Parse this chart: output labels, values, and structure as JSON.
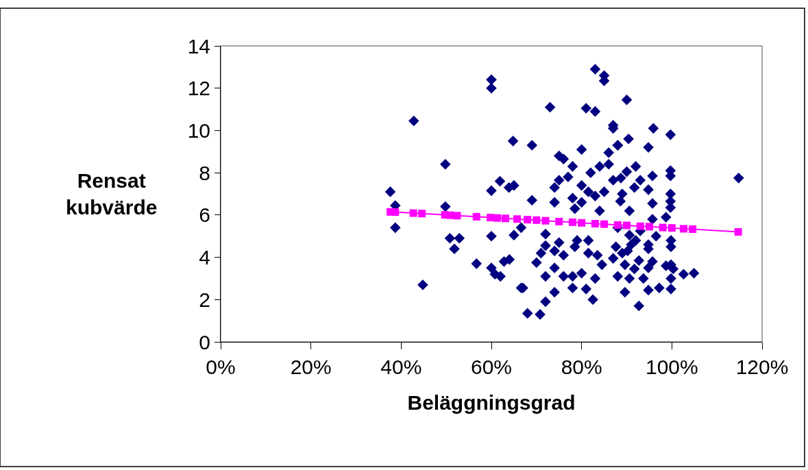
{
  "chart_data": {
    "type": "scatter",
    "xlabel": "Beläggningsgrad",
    "ylabel": "Rensat kubvärde",
    "xlim": [
      0,
      120
    ],
    "xticks": [
      {
        "value": 0,
        "label": "0%"
      },
      {
        "value": 20,
        "label": "20%"
      },
      {
        "value": 40,
        "label": "40%"
      },
      {
        "value": 60,
        "label": "60%"
      },
      {
        "value": 80,
        "label": "80%"
      },
      {
        "value": 100,
        "label": "100%"
      },
      {
        "value": 120,
        "label": "120%"
      }
    ],
    "ylim": [
      0,
      14
    ],
    "yticks": [
      0,
      2,
      4,
      6,
      8,
      10,
      12,
      14
    ],
    "grid": false,
    "series": [
      {
        "marker": "diamond",
        "color": "#000080",
        "x": [
          60,
          60,
          42.8,
          64.8,
          49.8,
          37.6,
          61.9,
          63.9,
          65,
          60,
          38.7,
          49.8,
          38.7,
          66.6,
          60,
          65,
          50.8,
          52.9,
          51.8,
          56.7,
          60,
          60.8,
          62,
          62.8,
          64,
          44.8,
          66.6,
          83,
          85,
          85,
          73,
          81,
          83,
          87,
          87,
          69,
          80,
          86,
          88,
          75,
          76,
          78,
          86,
          84,
          82,
          77,
          75,
          74,
          80,
          81.5,
          83,
          85,
          87,
          88.7,
          69,
          74,
          78,
          80,
          78.5,
          84,
          72,
          75,
          72,
          71,
          70,
          74,
          76,
          79,
          78.5,
          81.5,
          81.5,
          83.5,
          84.5,
          87.6,
          87,
          74,
          72,
          76,
          78,
          80,
          83,
          67,
          74,
          78,
          81,
          72,
          82.5,
          68,
          70.8,
          90,
          95.9,
          99.7,
          90.4,
          94.8,
          88,
          92,
          90,
          95.7,
          99.7,
          99.7,
          114.8,
          93,
          94.8,
          89,
          91.7,
          95.7,
          99.7,
          99.7,
          99.7,
          90.6,
          88.6,
          95.7,
          98.7,
          99.8,
          99.8,
          94.8,
          96.5,
          92,
          90.2,
          92.7,
          89.6,
          95.7,
          94.8,
          99.8,
          100.3,
          98.7,
          102.6,
          104.9,
          93.7,
          99.8,
          89.6,
          94.8,
          97.2,
          99.8,
          92.7,
          88,
          90.6,
          91.7,
          88,
          90.6,
          93,
          94.8,
          91,
          89
        ],
        "values": [
          12.4,
          12.0,
          10.45,
          9.5,
          8.4,
          7.1,
          7.6,
          7.3,
          7.4,
          7.15,
          6.45,
          6.4,
          5.4,
          5.4,
          5.0,
          5.05,
          4.9,
          4.9,
          4.4,
          3.7,
          3.5,
          3.2,
          3.1,
          3.8,
          3.9,
          2.7,
          2.55,
          12.9,
          12.6,
          12.35,
          11.1,
          11.05,
          10.9,
          10.25,
          10.1,
          9.3,
          9.1,
          8.95,
          9.3,
          8.8,
          8.65,
          8.3,
          8.4,
          8.3,
          8.0,
          7.8,
          7.65,
          7.3,
          7.4,
          7.1,
          6.9,
          7.1,
          7.65,
          7.75,
          6.7,
          6.6,
          6.8,
          6.6,
          6.3,
          6.2,
          5.1,
          4.7,
          4.55,
          4.2,
          3.75,
          4.3,
          4.1,
          4.8,
          4.5,
          4.8,
          4.2,
          4.1,
          3.65,
          4.5,
          3.95,
          3.5,
          3.1,
          3.1,
          3.1,
          3.25,
          3.0,
          2.55,
          2.35,
          2.55,
          2.5,
          1.9,
          2.0,
          1.35,
          1.3,
          11.45,
          10.1,
          9.8,
          9.6,
          9.2,
          9.3,
          8.3,
          8.05,
          7.85,
          8.1,
          7.85,
          7.75,
          7.65,
          7.2,
          7.0,
          7.3,
          6.55,
          7.0,
          6.65,
          6.35,
          6.2,
          6.65,
          5.8,
          5.9,
          4.8,
          4.5,
          4.4,
          5.0,
          4.8,
          4.3,
          3.85,
          3.65,
          3.8,
          3.5,
          3.65,
          3.45,
          3.6,
          3.2,
          3.25,
          3.0,
          3.0,
          2.35,
          2.45,
          2.55,
          2.5,
          1.7,
          3.1,
          3.0,
          3.45,
          5.4,
          5.05,
          5.25,
          4.6,
          4.6,
          4.2
        ]
      },
      {
        "type": "line",
        "marker": "square",
        "line_style": "solid",
        "color": "#ff00ff",
        "x": [
          37.6,
          38.7,
          42.7,
          44.6,
          49.7,
          50.9,
          52.4,
          56.7,
          59.8,
          61.3,
          63.1,
          65.7,
          68,
          70,
          72,
          75,
          78,
          80,
          83,
          85,
          88,
          90,
          93,
          95,
          98,
          100,
          102.6,
          104.6,
          114.7
        ],
        "values": [
          6.15,
          6.14,
          6.09,
          6.07,
          6.01,
          5.99,
          5.97,
          5.92,
          5.88,
          5.86,
          5.84,
          5.81,
          5.78,
          5.76,
          5.73,
          5.69,
          5.66,
          5.63,
          5.59,
          5.57,
          5.53,
          5.51,
          5.47,
          5.45,
          5.41,
          5.39,
          5.35,
          5.33,
          5.2
        ]
      }
    ]
  }
}
